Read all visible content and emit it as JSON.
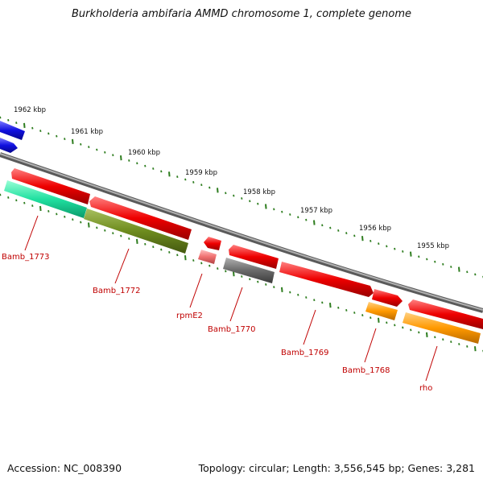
{
  "title": "Burkholderia ambifaria AMMD chromosome 1, complete genome",
  "footer": {
    "accession": "Accession: NC_008390",
    "summary": "Topology: circular; Length: 3,556,545 bp; Genes: 3,281"
  },
  "colors": {
    "backbone": "#888888",
    "tick": "#2e7d1f",
    "label": "#c00000",
    "blue": "#1010e0",
    "red": "#ee0000",
    "pink": "#f07070",
    "mint": "#20e0a0",
    "olive": "#6e8c1e",
    "gray": "#6a6a6a",
    "orange": "#ff9900"
  },
  "scale_labels": [
    "1962 kbp",
    "1961 kbp",
    "1960 kbp",
    "1959 kbp",
    "1958 kbp",
    "1957 kbp",
    "1956 kbp",
    "1955 kbp"
  ],
  "genes": [
    {
      "label": "",
      "color": "blue",
      "track": "outer",
      "strand": "-"
    },
    {
      "label": "",
      "color": "blue",
      "track": "outer",
      "strand": "-"
    },
    {
      "label": "",
      "color": "red",
      "track": "outer",
      "strand": "-"
    },
    {
      "label": "",
      "color": "red",
      "track": "outer",
      "strand": "+"
    },
    {
      "label": "",
      "color": "red",
      "track": "outer",
      "strand": "-"
    },
    {
      "label": "",
      "color": "red",
      "track": "outer",
      "strand": "-"
    },
    {
      "label": "",
      "color": "red",
      "track": "outer",
      "strand": "+"
    },
    {
      "label": "",
      "color": "red",
      "track": "outer",
      "strand": "+"
    },
    {
      "label": "",
      "color": "red",
      "track": "outer",
      "strand": "-"
    },
    {
      "label": "Bamb_1773",
      "color": "mint",
      "track": "inner"
    },
    {
      "label": "Bamb_1772",
      "color": "olive",
      "track": "inner"
    },
    {
      "label": "rpmE2",
      "color": "pink",
      "track": "inner"
    },
    {
      "label": "Bamb_1770",
      "color": "gray",
      "track": "inner"
    },
    {
      "label": "Bamb_1769",
      "color": "red",
      "track": "inner"
    },
    {
      "label": "Bamb_1768",
      "color": "orange",
      "track": "inner"
    },
    {
      "label": "rho",
      "color": "orange",
      "track": "inner"
    }
  ]
}
